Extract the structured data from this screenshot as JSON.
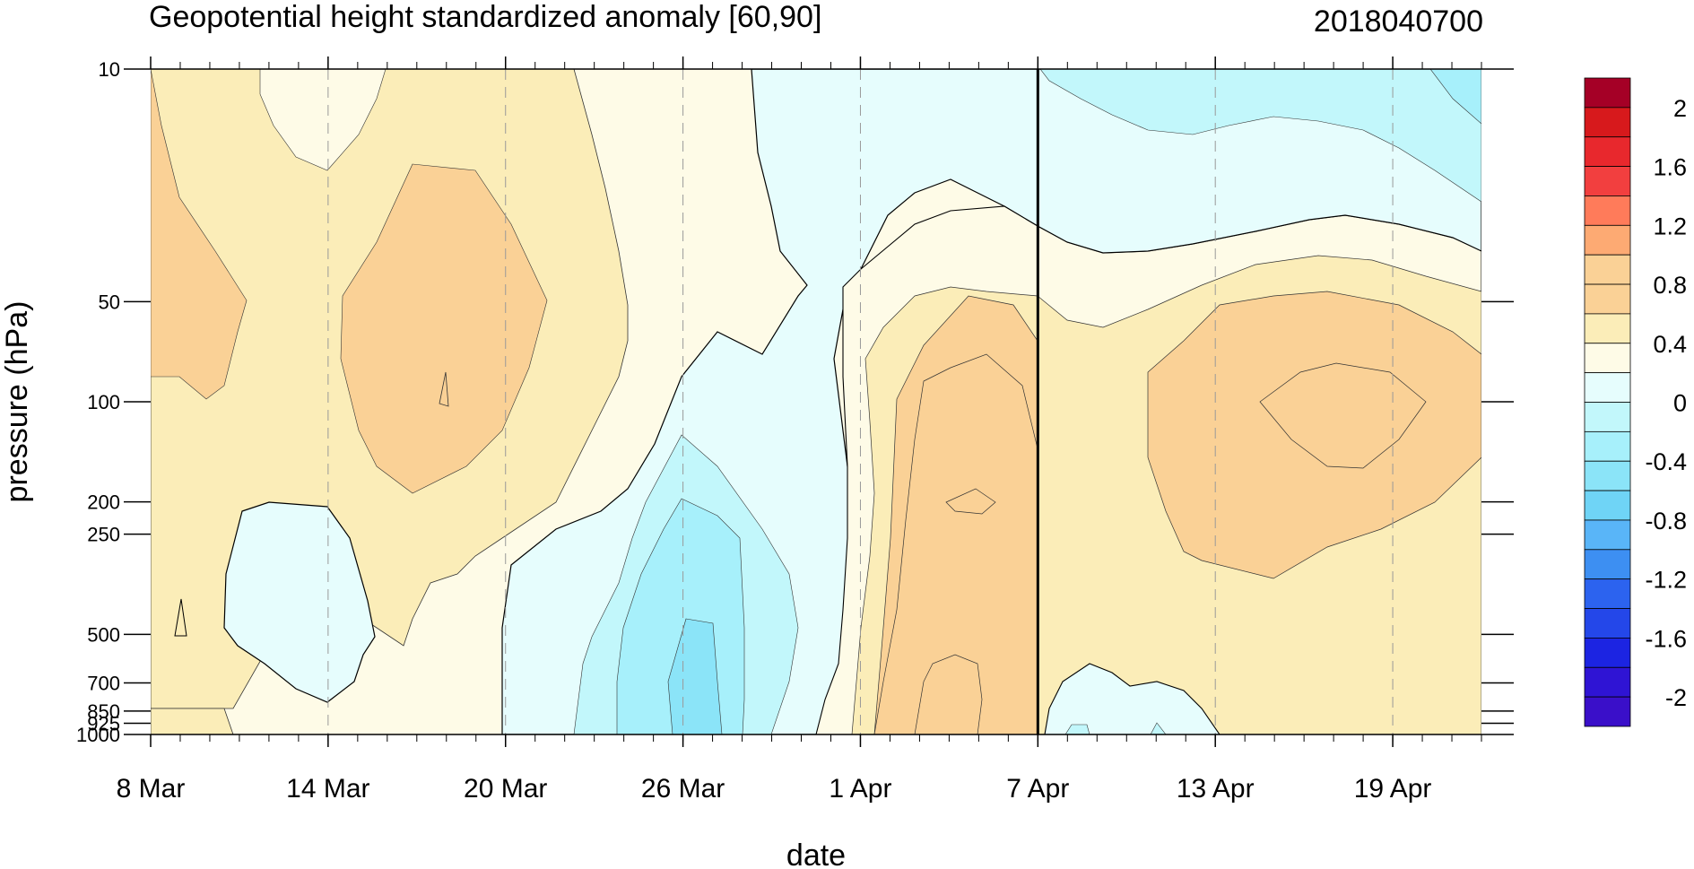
{
  "chart_data": {
    "type": "contour",
    "title": "Geopotential height standardized anomaly [60,90]",
    "date_label": "2018040700",
    "xlabel": "date",
    "ylabel": "pressure (hPa)",
    "x_axis": {
      "type": "date",
      "start": "2018-03-08",
      "end": "2018-04-22"
    },
    "x_ticks": [
      {
        "date": "2018-03-08",
        "label": "8 Mar"
      },
      {
        "date": "2018-03-14",
        "label": "14 Mar"
      },
      {
        "date": "2018-03-20",
        "label": "20 Mar"
      },
      {
        "date": "2018-03-26",
        "label": "26 Mar"
      },
      {
        "date": "2018-04-01",
        "label": "1 Apr"
      },
      {
        "date": "2018-04-07",
        "label": "7 Apr"
      },
      {
        "date": "2018-04-13",
        "label": "13 Apr"
      },
      {
        "date": "2018-04-19",
        "label": "19 Apr"
      }
    ],
    "y_axis": {
      "type": "log",
      "inverted": true,
      "range": [
        1000,
        10
      ]
    },
    "y_ticks": [
      10,
      50,
      100,
      200,
      250,
      500,
      700,
      850,
      925,
      1000
    ],
    "y_tick_labels": [
      "10",
      "50",
      "100",
      "200",
      "250",
      "500",
      "700",
      "850",
      "925",
      "1000"
    ],
    "current_date_line": "2018-04-07",
    "grid": "dashed vertical lines at labeled dates",
    "legend": "colorbar right",
    "contour_levels": [
      -2.2,
      -2,
      -1.8,
      -1.6,
      -1.4,
      -1.2,
      -1,
      -0.8,
      -0.6,
      -0.4,
      -0.2,
      0,
      0.2,
      0.4,
      0.6,
      0.8,
      1,
      1.2,
      1.4,
      1.6,
      1.8,
      2,
      2.2
    ],
    "colorbar_labels": [
      "2",
      "1.6",
      "1.2",
      "0.8",
      "0.4",
      "0",
      "-0.4",
      "-0.8",
      "-1.2",
      "-1.6",
      "-2"
    ],
    "colorbar_colors_top_to_bottom": [
      "#a50026",
      "#d7191c",
      "#e8282d",
      "#f23f3f",
      "#ff7b5a",
      "#fdaa73",
      "#fad196",
      "#fad196",
      "#fbedb8",
      "#fefbe7",
      "#e6fdfd",
      "#c2f7fb",
      "#a7f0fb",
      "#8be4f8",
      "#6fd4f6",
      "#59b5f8",
      "#3d8ff2",
      "#2c63ef",
      "#2447e9",
      "#1c24e2",
      "#2f14d4",
      "#3a0fc9"
    ],
    "regions": [
      {
        "name": "positive anomaly, upper left",
        "value": 0.4,
        "date_range": [
          "2018-03-08",
          "2018-03-12"
        ],
        "pressure_range": [
          10,
          190
        ]
      },
      {
        "name": "positive anomaly mid-March core",
        "value": 0.6,
        "date_range": [
          "2018-03-15",
          "2018-03-21"
        ],
        "pressure_range": [
          30,
          190
        ]
      },
      {
        "name": "negative anomaly stratosphere late March",
        "value": -0.1,
        "date_range": [
          "2018-03-29",
          "2018-04-07"
        ],
        "pressure_range": [
          10,
          60
        ]
      },
      {
        "name": "negative anomaly troposphere late March",
        "value": -0.7,
        "date_range": [
          "2018-03-25",
          "2018-03-28"
        ],
        "pressure_range": [
          150,
          1000
        ]
      },
      {
        "name": "positive anomaly early April",
        "value": 0.7,
        "date_range": [
          "2018-04-03",
          "2018-04-06"
        ],
        "pressure_range": [
          80,
          1000
        ]
      },
      {
        "name": "negative anomaly upper right",
        "value": -0.3,
        "date_range": [
          "2018-04-07",
          "2018-04-22"
        ],
        "pressure_range": [
          10,
          30
        ]
      },
      {
        "name": "positive anomaly mid-April core",
        "value": 0.7,
        "date_range": [
          "2018-04-12",
          "2018-04-22"
        ],
        "pressure_range": [
          70,
          350
        ]
      }
    ]
  }
}
